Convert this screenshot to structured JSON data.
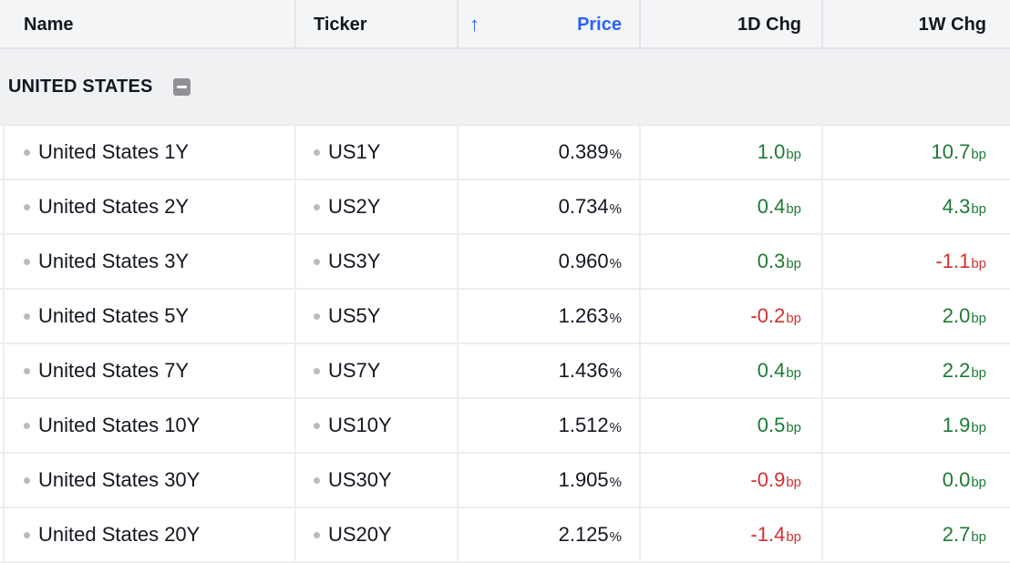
{
  "columns": {
    "name": "Name",
    "ticker": "Ticker",
    "price": "Price",
    "d1": "1D Chg",
    "w1": "1W Chg"
  },
  "sort_icon": "arrow-up-icon",
  "group": {
    "label": "UNITED STATES",
    "icon": "collapse-minus-icon"
  },
  "colors": {
    "positive": "#1e7a34",
    "negative": "#d13030",
    "accent": "#2962ff"
  },
  "rows": [
    {
      "name": "United States 1Y",
      "ticker": "US1Y",
      "price": "0.389",
      "price_unit": "%",
      "d1": "1.0",
      "d1_unit": "bp",
      "d1_dir": "pos",
      "w1": "10.7",
      "w1_unit": "bp",
      "w1_dir": "pos"
    },
    {
      "name": "United States 2Y",
      "ticker": "US2Y",
      "price": "0.734",
      "price_unit": "%",
      "d1": "0.4",
      "d1_unit": "bp",
      "d1_dir": "pos",
      "w1": "4.3",
      "w1_unit": "bp",
      "w1_dir": "pos"
    },
    {
      "name": "United States 3Y",
      "ticker": "US3Y",
      "price": "0.960",
      "price_unit": "%",
      "d1": "0.3",
      "d1_unit": "bp",
      "d1_dir": "pos",
      "w1": "-1.1",
      "w1_unit": "bp",
      "w1_dir": "neg"
    },
    {
      "name": "United States 5Y",
      "ticker": "US5Y",
      "price": "1.263",
      "price_unit": "%",
      "d1": "-0.2",
      "d1_unit": "bp",
      "d1_dir": "neg",
      "w1": "2.0",
      "w1_unit": "bp",
      "w1_dir": "pos"
    },
    {
      "name": "United States 7Y",
      "ticker": "US7Y",
      "price": "1.436",
      "price_unit": "%",
      "d1": "0.4",
      "d1_unit": "bp",
      "d1_dir": "pos",
      "w1": "2.2",
      "w1_unit": "bp",
      "w1_dir": "pos"
    },
    {
      "name": "United States 10Y",
      "ticker": "US10Y",
      "price": "1.512",
      "price_unit": "%",
      "d1": "0.5",
      "d1_unit": "bp",
      "d1_dir": "pos",
      "w1": "1.9",
      "w1_unit": "bp",
      "w1_dir": "pos"
    },
    {
      "name": "United States 30Y",
      "ticker": "US30Y",
      "price": "1.905",
      "price_unit": "%",
      "d1": "-0.9",
      "d1_unit": "bp",
      "d1_dir": "neg",
      "w1": "0.0",
      "w1_unit": "bp",
      "w1_dir": "pos"
    },
    {
      "name": "United States 20Y",
      "ticker": "US20Y",
      "price": "2.125",
      "price_unit": "%",
      "d1": "-1.4",
      "d1_unit": "bp",
      "d1_dir": "neg",
      "w1": "2.7",
      "w1_unit": "bp",
      "w1_dir": "pos"
    }
  ]
}
